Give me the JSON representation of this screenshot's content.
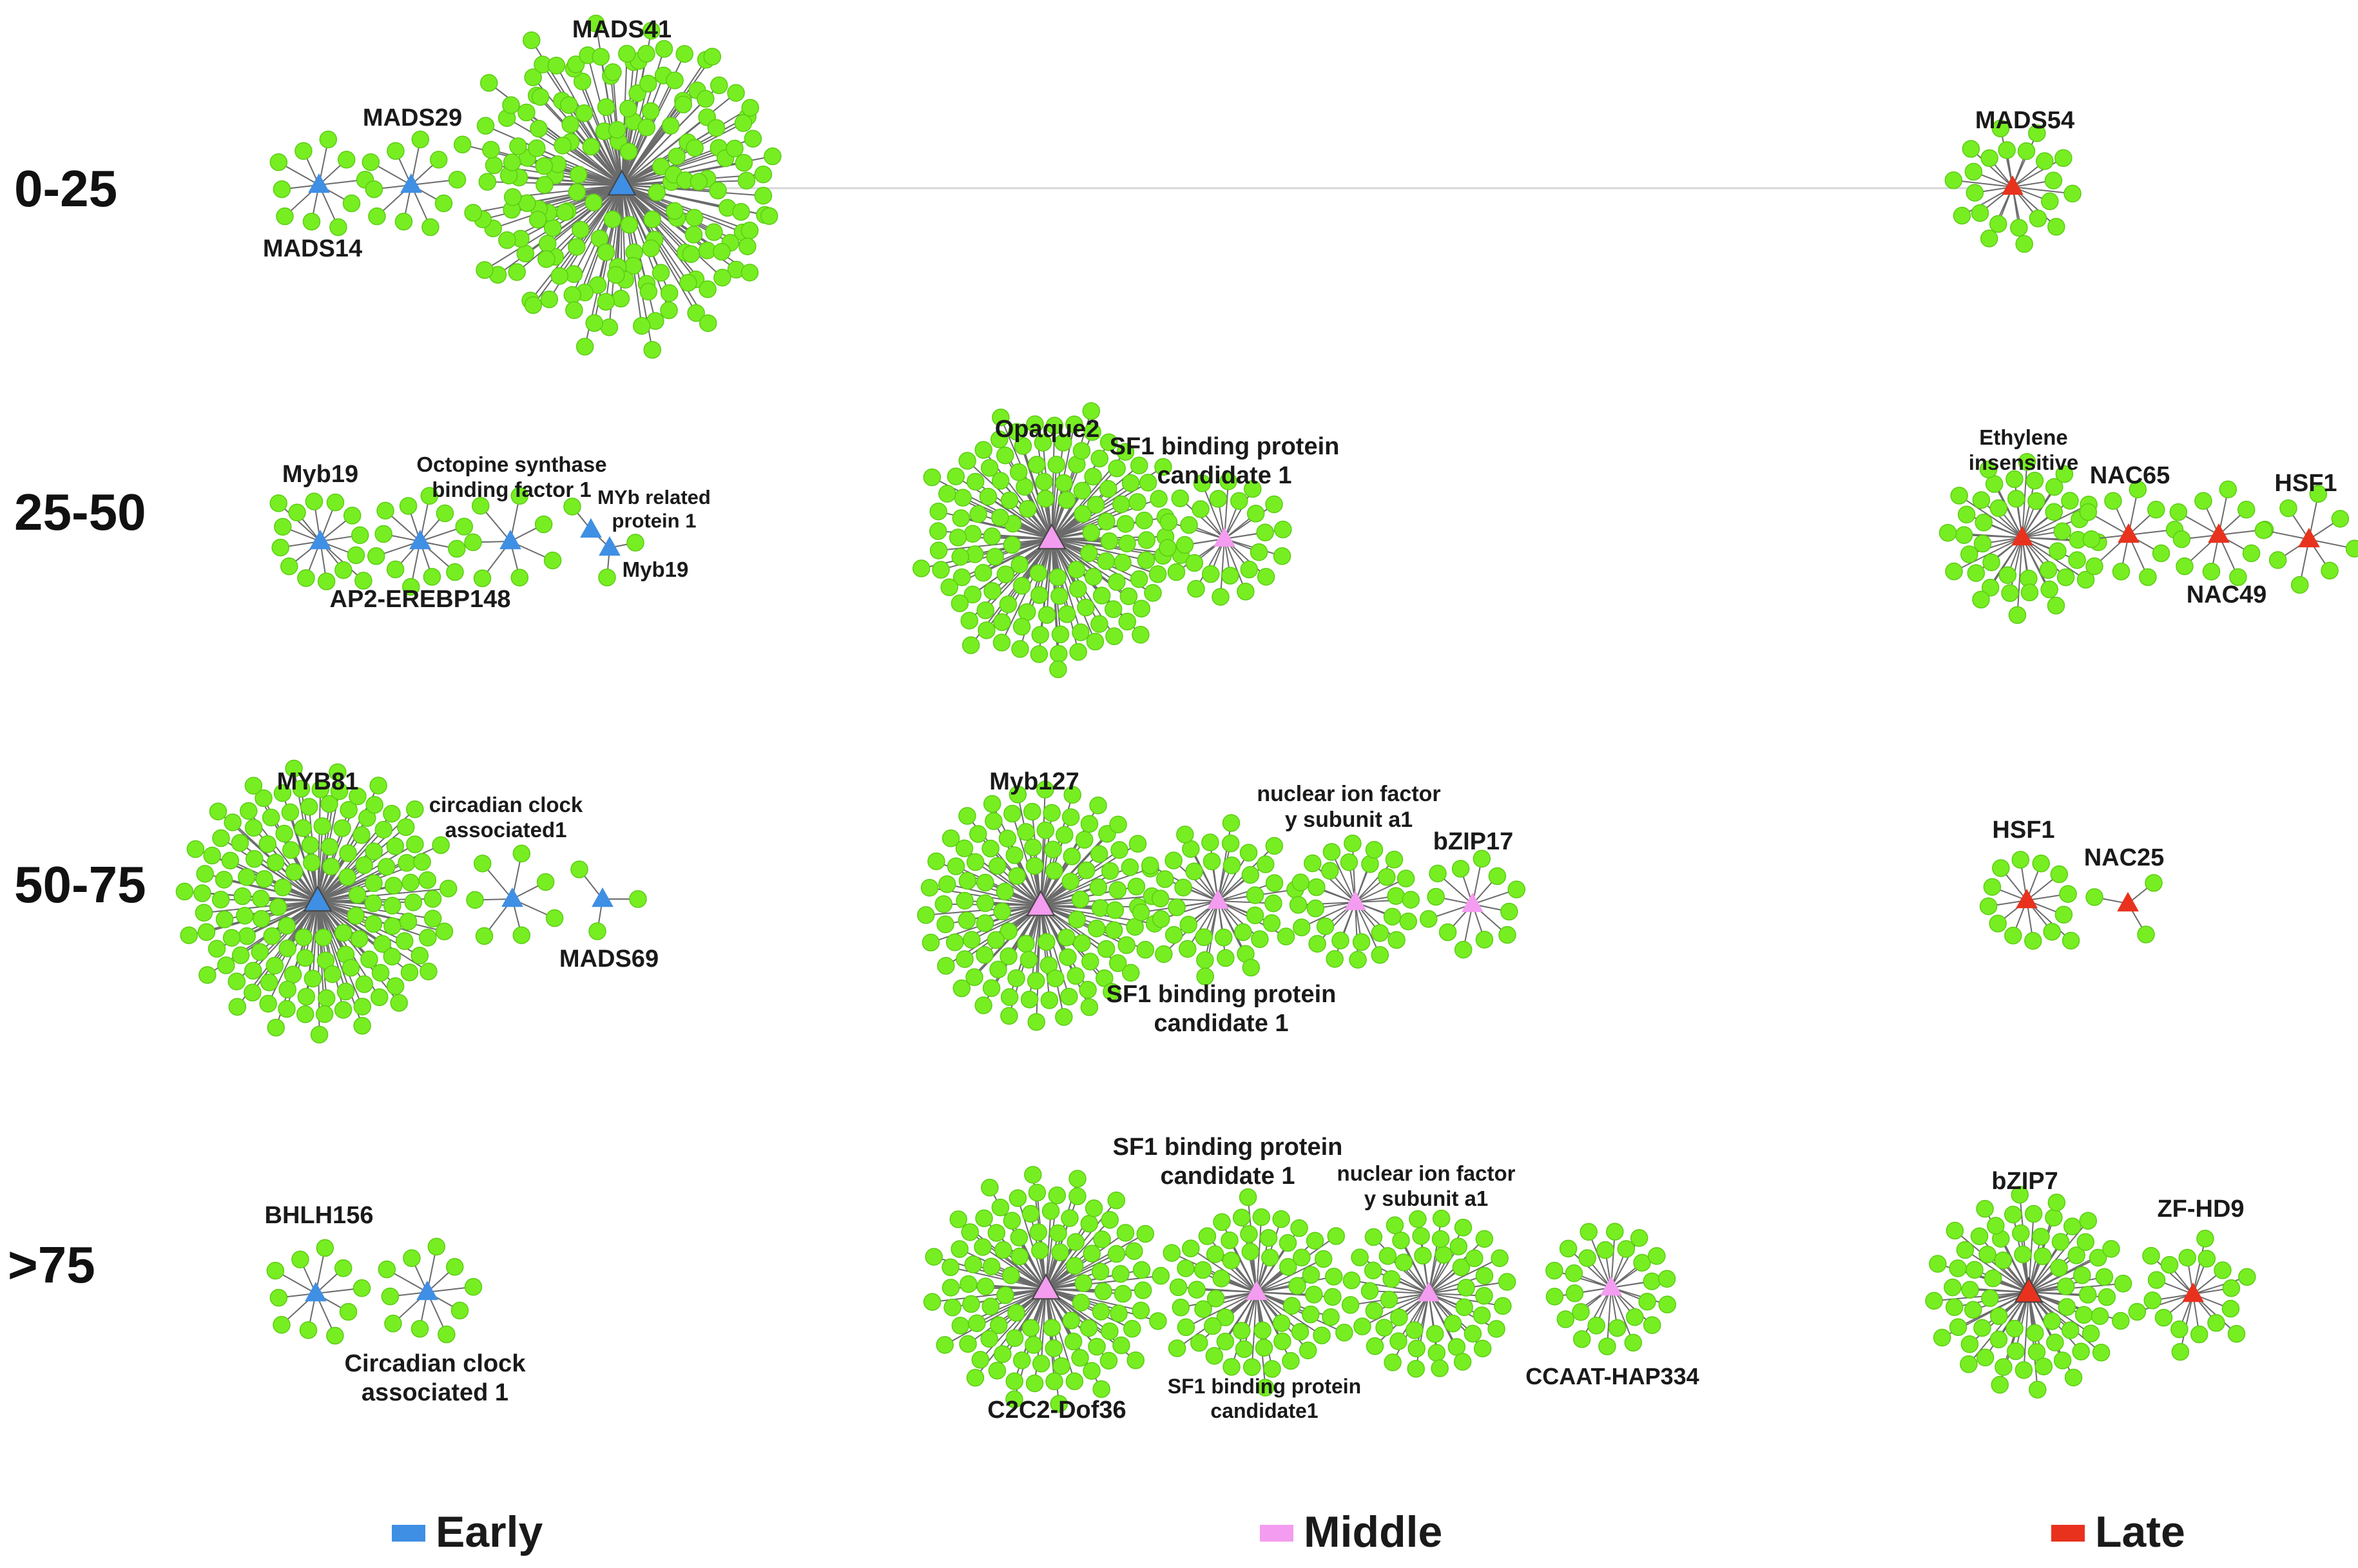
{
  "palette": {
    "early": "#3f8fe4",
    "middle": "#f49cf0",
    "late": "#e8321e",
    "gene": "#77ee22"
  },
  "legend": [
    {
      "key": "early",
      "label": "Early"
    },
    {
      "key": "middle",
      "label": "Middle"
    },
    {
      "key": "late",
      "label": "Late"
    }
  ],
  "rows": [
    {
      "label": "0-25"
    },
    {
      "label": "25-50"
    },
    {
      "label": "50-75"
    },
    {
      "label": ">75"
    }
  ],
  "hubs": [
    {
      "id": "mads14",
      "name": [
        "MADS14"
      ],
      "phase": "early",
      "genes": 10
    },
    {
      "id": "mads29",
      "name": [
        "MADS29"
      ],
      "phase": "early",
      "genes": 10
    },
    {
      "id": "mads41",
      "name": [
        "MADS41"
      ],
      "phase": "early",
      "genes": 180
    },
    {
      "id": "mads54",
      "name": [
        "MADS54"
      ],
      "phase": "late",
      "genes": 22
    },
    {
      "id": "myb19a",
      "name": [
        "Myb19"
      ],
      "phase": "early",
      "genes": 14
    },
    {
      "id": "ap2",
      "name": [
        "AP2-EREBP148"
      ],
      "phase": "early",
      "genes": 12
    },
    {
      "id": "octopine",
      "name": [
        "Octopine synthase",
        "binding factor 1"
      ],
      "phase": "early",
      "genes": 7
    },
    {
      "id": "mybrel",
      "name": [
        "MYb related",
        "protein 1"
      ],
      "phase": "early",
      "genes": 1
    },
    {
      "id": "myb19b",
      "name": [
        "Myb19"
      ],
      "phase": "early",
      "genes": 2
    },
    {
      "id": "opaque2",
      "name": [
        "Opaque2"
      ],
      "phase": "middle",
      "genes": 130
    },
    {
      "id": "sf1a",
      "name": [
        "SF1 binding protein",
        "candidate 1"
      ],
      "phase": "middle",
      "genes": 26
    },
    {
      "id": "ethylene",
      "name": [
        "Ethylene",
        "insensitive"
      ],
      "phase": "late",
      "genes": 42
    },
    {
      "id": "nac65",
      "name": [
        "NAC65"
      ],
      "phase": "late",
      "genes": 10
    },
    {
      "id": "nac49",
      "name": [
        "NAC49"
      ],
      "phase": "late",
      "genes": 10
    },
    {
      "id": "hsf1a",
      "name": [
        "HSF1"
      ],
      "phase": "late",
      "genes": 8
    },
    {
      "id": "myb81",
      "name": [
        "MYB81"
      ],
      "phase": "early",
      "genes": 140
    },
    {
      "id": "circ1",
      "name": [
        "circadian clock",
        "associated1"
      ],
      "phase": "early",
      "genes": 7
    },
    {
      "id": "mads69",
      "name": [
        "MADS69"
      ],
      "phase": "early",
      "genes": 3
    },
    {
      "id": "myb127",
      "name": [
        "Myb127"
      ],
      "phase": "middle",
      "genes": 110
    },
    {
      "id": "sf1b",
      "name": [
        "SF1 binding protein",
        "candidate 1"
      ],
      "phase": "middle",
      "genes": 40
    },
    {
      "id": "nifa",
      "name": [
        "nuclear ion factor",
        "y subunit a1"
      ],
      "phase": "middle",
      "genes": 28
    },
    {
      "id": "bzip17",
      "name": [
        "bZIP17"
      ],
      "phase": "middle",
      "genes": 12
    },
    {
      "id": "hsf1b",
      "name": [
        "HSF1"
      ],
      "phase": "late",
      "genes": 13
    },
    {
      "id": "nac25",
      "name": [
        "NAC25"
      ],
      "phase": "late",
      "genes": 3
    },
    {
      "id": "bhlh156",
      "name": [
        "BHLH156"
      ],
      "phase": "early",
      "genes": 10
    },
    {
      "id": "circ2",
      "name": [
        "Circadian clock",
        "associated 1"
      ],
      "phase": "early",
      "genes": 10
    },
    {
      "id": "dof36",
      "name": [
        "C2C2-Dof36"
      ],
      "phase": "middle",
      "genes": 100
    },
    {
      "id": "sf1c",
      "name": [
        "SF1 binding protein",
        "candidate 1"
      ],
      "phase": "middle",
      "genes": 60
    },
    {
      "id": "sf1d",
      "name": [
        "SF1 binding protein",
        "candidate1"
      ],
      "phase": "middle",
      "genes": 0
    },
    {
      "id": "nifb",
      "name": [
        "nuclear ion factor",
        "y subunit a1"
      ],
      "phase": "middle",
      "genes": 50
    },
    {
      "id": "ccaat",
      "name": [
        "CCAAT-HAP334"
      ],
      "phase": "middle",
      "genes": 26
    },
    {
      "id": "bzip7",
      "name": [
        "bZIP7"
      ],
      "phase": "late",
      "genes": 70
    },
    {
      "id": "zfhd9",
      "name": [
        "ZF-HD9"
      ],
      "phase": "late",
      "genes": 18
    }
  ]
}
